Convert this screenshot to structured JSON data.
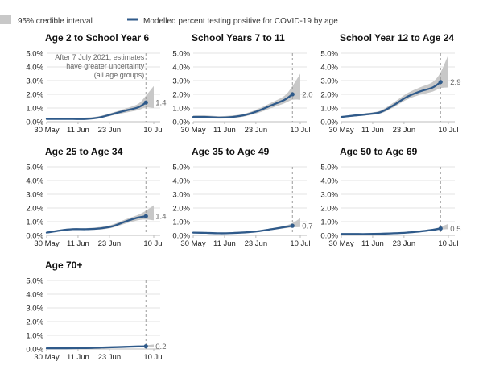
{
  "legend": {
    "ci_label": "95% credible interval",
    "line_label": "Modelled percent testing positive for COVID-19 by age",
    "ci_color": "#c8c8c8",
    "line_color": "#2f5a8a"
  },
  "annotation": {
    "lines": [
      "After 7 July 2021, estimates",
      "have greater uncertainty",
      "(all age groups)"
    ]
  },
  "chart_data": [
    {
      "type": "line",
      "title": "Age 2 to School Year 6",
      "x": [
        "2021-05-30",
        "2021-06-04",
        "2021-06-09",
        "2021-06-14",
        "2021-06-19",
        "2021-06-24",
        "2021-06-29",
        "2021-07-04",
        "2021-07-07",
        "2021-07-10"
      ],
      "y": [
        0.2,
        0.2,
        0.2,
        0.2,
        0.3,
        0.55,
        0.8,
        1.05,
        1.4,
        1.8
      ],
      "ci_low": [
        0.15,
        0.15,
        0.15,
        0.15,
        0.25,
        0.45,
        0.65,
        0.85,
        1.05,
        1.0
      ],
      "ci_high": [
        0.25,
        0.25,
        0.25,
        0.3,
        0.4,
        0.65,
        0.95,
        1.3,
        1.9,
        2.6
      ],
      "end_label": "1.4",
      "ylim": [
        0,
        5
      ],
      "yticks": [
        "0.0%",
        "1.0%",
        "2.0%",
        "3.0%",
        "4.0%",
        "5.0%"
      ],
      "xticks": [
        "30 May",
        "11 Jun",
        "23 Jun",
        "10 Jul"
      ]
    },
    {
      "type": "line",
      "title": "School Years 7 to 11",
      "x": [
        "2021-05-30",
        "2021-06-04",
        "2021-06-09",
        "2021-06-14",
        "2021-06-19",
        "2021-06-24",
        "2021-06-29",
        "2021-07-04",
        "2021-07-07",
        "2021-07-10"
      ],
      "y": [
        0.35,
        0.35,
        0.3,
        0.35,
        0.5,
        0.8,
        1.2,
        1.6,
        2.0,
        2.4
      ],
      "ci_low": [
        0.25,
        0.25,
        0.22,
        0.27,
        0.4,
        0.65,
        1.0,
        1.35,
        1.6,
        1.6
      ],
      "ci_high": [
        0.45,
        0.45,
        0.4,
        0.45,
        0.6,
        0.95,
        1.4,
        1.9,
        2.6,
        3.5
      ],
      "end_label": "2.0",
      "ylim": [
        0,
        5
      ],
      "yticks": [
        "0.0%",
        "1.0%",
        "2.0%",
        "3.0%",
        "4.0%",
        "5.0%"
      ],
      "xticks": [
        "30 May",
        "11 Jun",
        "23 Jun",
        "10 Jul"
      ]
    },
    {
      "type": "line",
      "title": "School Year 12 to Age 24",
      "x": [
        "2021-05-30",
        "2021-06-04",
        "2021-06-09",
        "2021-06-14",
        "2021-06-19",
        "2021-06-24",
        "2021-06-29",
        "2021-07-04",
        "2021-07-07",
        "2021-07-10"
      ],
      "y": [
        0.35,
        0.45,
        0.55,
        0.7,
        1.2,
        1.8,
        2.2,
        2.5,
        2.9,
        3.3
      ],
      "ci_low": [
        0.3,
        0.38,
        0.47,
        0.6,
        1.05,
        1.6,
        1.95,
        2.2,
        2.45,
        2.5
      ],
      "ci_high": [
        0.42,
        0.52,
        0.63,
        0.82,
        1.4,
        2.05,
        2.5,
        2.9,
        3.6,
        4.9
      ],
      "end_label": "2.9",
      "ylim": [
        0,
        5
      ],
      "yticks": [
        "0.0%",
        "1.0%",
        "2.0%",
        "3.0%",
        "4.0%",
        "5.0%"
      ],
      "xticks": [
        "30 May",
        "11 Jun",
        "23 Jun",
        "10 Jul"
      ]
    },
    {
      "type": "line",
      "title": "Age 25 to Age 34",
      "x": [
        "2021-05-30",
        "2021-06-04",
        "2021-06-09",
        "2021-06-14",
        "2021-06-19",
        "2021-06-24",
        "2021-06-29",
        "2021-07-04",
        "2021-07-07",
        "2021-07-10"
      ],
      "y": [
        0.2,
        0.35,
        0.45,
        0.45,
        0.5,
        0.65,
        1.0,
        1.3,
        1.4,
        1.6
      ],
      "ci_low": [
        0.15,
        0.3,
        0.38,
        0.38,
        0.42,
        0.55,
        0.85,
        1.1,
        1.15,
        1.1
      ],
      "ci_high": [
        0.27,
        0.42,
        0.52,
        0.52,
        0.6,
        0.78,
        1.15,
        1.5,
        1.8,
        2.2
      ],
      "end_label": "1.4",
      "ylim": [
        0,
        5
      ],
      "yticks": [
        "0.0%",
        "1.0%",
        "2.0%",
        "3.0%",
        "4.0%",
        "5.0%"
      ],
      "xticks": [
        "30 May",
        "11 Jun",
        "23 Jun",
        "10 Jul"
      ]
    },
    {
      "type": "line",
      "title": "Age 35 to Age 49",
      "x": [
        "2021-05-30",
        "2021-06-04",
        "2021-06-09",
        "2021-06-14",
        "2021-06-19",
        "2021-06-24",
        "2021-06-29",
        "2021-07-04",
        "2021-07-07",
        "2021-07-10"
      ],
      "y": [
        0.2,
        0.18,
        0.15,
        0.17,
        0.22,
        0.3,
        0.45,
        0.6,
        0.7,
        0.85
      ],
      "ci_low": [
        0.17,
        0.15,
        0.13,
        0.15,
        0.19,
        0.26,
        0.4,
        0.52,
        0.58,
        0.6
      ],
      "ci_high": [
        0.23,
        0.21,
        0.18,
        0.2,
        0.26,
        0.35,
        0.52,
        0.7,
        0.9,
        1.25
      ],
      "end_label": "0.7",
      "ylim": [
        0,
        5
      ],
      "yticks": [
        "0.0%",
        "1.0%",
        "2.0%",
        "3.0%",
        "4.0%",
        "5.0%"
      ],
      "xticks": [
        "30 May",
        "11 Jun",
        "23 Jun",
        "10 Jul"
      ]
    },
    {
      "type": "line",
      "title": "Age 50 to Age 69",
      "x": [
        "2021-05-30",
        "2021-06-04",
        "2021-06-09",
        "2021-06-14",
        "2021-06-19",
        "2021-06-24",
        "2021-06-29",
        "2021-07-04",
        "2021-07-07",
        "2021-07-10"
      ],
      "y": [
        0.1,
        0.1,
        0.1,
        0.12,
        0.15,
        0.2,
        0.28,
        0.4,
        0.5,
        0.6
      ],
      "ci_low": [
        0.08,
        0.08,
        0.08,
        0.1,
        0.13,
        0.17,
        0.24,
        0.34,
        0.42,
        0.45
      ],
      "ci_high": [
        0.12,
        0.12,
        0.12,
        0.14,
        0.18,
        0.23,
        0.33,
        0.47,
        0.62,
        0.85
      ],
      "end_label": "0.5",
      "ylim": [
        0,
        5
      ],
      "yticks": [
        "0.0%",
        "1.0%",
        "2.0%",
        "3.0%",
        "4.0%",
        "5.0%"
      ],
      "xticks": [
        "30 May",
        "11 Jun",
        "23 Jun",
        "10 Jul"
      ]
    },
    {
      "type": "line",
      "title": "Age 70+",
      "x": [
        "2021-05-30",
        "2021-06-04",
        "2021-06-09",
        "2021-06-14",
        "2021-06-19",
        "2021-06-24",
        "2021-06-29",
        "2021-07-04",
        "2021-07-07",
        "2021-07-10"
      ],
      "y": [
        0.05,
        0.05,
        0.06,
        0.07,
        0.1,
        0.13,
        0.16,
        0.19,
        0.2,
        0.22
      ],
      "ci_low": [
        0.04,
        0.04,
        0.05,
        0.06,
        0.08,
        0.11,
        0.13,
        0.15,
        0.16,
        0.15
      ],
      "ci_high": [
        0.06,
        0.06,
        0.07,
        0.08,
        0.12,
        0.15,
        0.19,
        0.23,
        0.27,
        0.33
      ],
      "end_label": "0.2",
      "ylim": [
        0,
        5
      ],
      "yticks": [
        "0.0%",
        "1.0%",
        "2.0%",
        "3.0%",
        "4.0%",
        "5.0%"
      ],
      "xticks": [
        "30 May",
        "11 Jun",
        "23 Jun",
        "10 Jul"
      ]
    }
  ]
}
